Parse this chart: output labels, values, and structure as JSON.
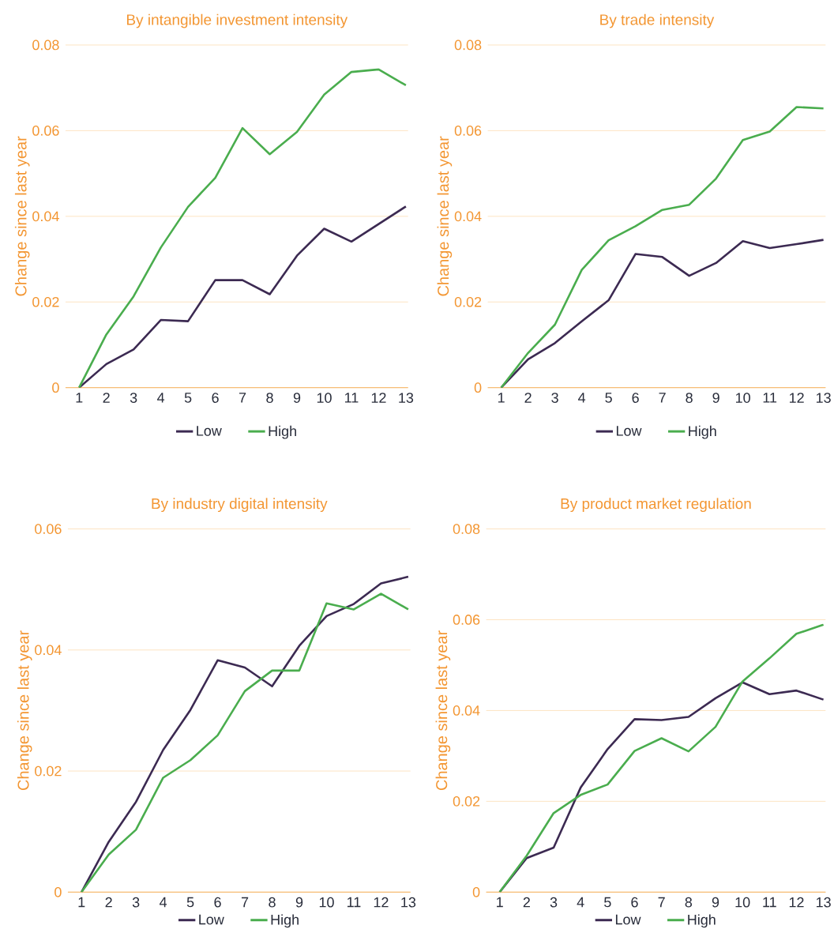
{
  "chart_data": [
    {
      "type": "line",
      "title": "By intangible investment intensity",
      "ylabel": "Change since last year",
      "categories": [
        "1",
        "2",
        "3",
        "4",
        "5",
        "6",
        "7",
        "8",
        "9",
        "10",
        "11",
        "12",
        "13"
      ],
      "ylim": [
        0,
        0.08
      ],
      "yticks": [
        0,
        0.02,
        0.04,
        0.06,
        0.08
      ],
      "grid": "y",
      "legend": "bottom",
      "series": [
        {
          "name": "Low",
          "color": "#3c2a52",
          "values": [
            0,
            0.0055,
            0.0089,
            0.0158,
            0.0155,
            0.0251,
            0.0251,
            0.0218,
            0.0308,
            0.0371,
            0.0341,
            0.0382,
            0.0423
          ]
        },
        {
          "name": "High",
          "color": "#4aad4e",
          "values": [
            0,
            0.0124,
            0.0213,
            0.0327,
            0.0422,
            0.049,
            0.0606,
            0.0545,
            0.0597,
            0.0684,
            0.0737,
            0.0743,
            0.0706
          ]
        }
      ]
    },
    {
      "type": "line",
      "title": "By trade intensity",
      "ylabel": "Change since last year",
      "categories": [
        "1",
        "2",
        "3",
        "4",
        "5",
        "6",
        "7",
        "8",
        "9",
        "10",
        "11",
        "12",
        "13"
      ],
      "ylim": [
        0,
        0.08
      ],
      "yticks": [
        0,
        0.02,
        0.04,
        0.06,
        0.08
      ],
      "grid": "y",
      "legend": "bottom",
      "series": [
        {
          "name": "Low",
          "color": "#3c2a52",
          "values": [
            0,
            0.0066,
            0.0104,
            0.0155,
            0.0204,
            0.0312,
            0.0305,
            0.0261,
            0.0291,
            0.0342,
            0.0326,
            0.0335,
            0.0345
          ]
        },
        {
          "name": "High",
          "color": "#4aad4e",
          "values": [
            0,
            0.0081,
            0.0147,
            0.0275,
            0.0344,
            0.0377,
            0.0415,
            0.0427,
            0.0488,
            0.0578,
            0.0598,
            0.0655,
            0.0652
          ]
        }
      ]
    },
    {
      "type": "line",
      "title": "By industry digital intensity",
      "ylabel": "Change since last year",
      "categories": [
        "1",
        "2",
        "3",
        "4",
        "5",
        "6",
        "7",
        "8",
        "9",
        "10",
        "11",
        "12",
        "13"
      ],
      "ylim": [
        0,
        0.06
      ],
      "yticks": [
        0,
        0.02,
        0.04,
        0.06
      ],
      "grid": "y",
      "legend": "bottom",
      "series": [
        {
          "name": "Low",
          "color": "#3c2a52",
          "values": [
            0,
            0.0083,
            0.0149,
            0.0235,
            0.0301,
            0.0383,
            0.0371,
            0.034,
            0.0407,
            0.0456,
            0.0476,
            0.051,
            0.0521
          ]
        },
        {
          "name": "High",
          "color": "#4aad4e",
          "values": [
            0,
            0.0062,
            0.0103,
            0.0189,
            0.0218,
            0.0259,
            0.0332,
            0.0366,
            0.0366,
            0.0477,
            0.0467,
            0.0493,
            0.0467
          ]
        }
      ]
    },
    {
      "type": "line",
      "title": "By product market regulation",
      "ylabel": "Change since last year",
      "categories": [
        "1",
        "2",
        "3",
        "4",
        "5",
        "6",
        "7",
        "8",
        "9",
        "10",
        "11",
        "12",
        "13"
      ],
      "ylim": [
        0,
        0.08
      ],
      "yticks": [
        0,
        0.02,
        0.04,
        0.06,
        0.08
      ],
      "grid": "y",
      "legend": "bottom",
      "series": [
        {
          "name": "Low",
          "color": "#3c2a52",
          "values": [
            0,
            0.0075,
            0.0098,
            0.023,
            0.0315,
            0.0381,
            0.0379,
            0.0386,
            0.0427,
            0.0462,
            0.0436,
            0.0444,
            0.0424
          ]
        },
        {
          "name": "High",
          "color": "#4aad4e",
          "values": [
            0,
            0.008,
            0.0174,
            0.0214,
            0.0237,
            0.0311,
            0.0339,
            0.031,
            0.0364,
            0.0464,
            0.0515,
            0.0569,
            0.0589
          ]
        }
      ]
    }
  ]
}
